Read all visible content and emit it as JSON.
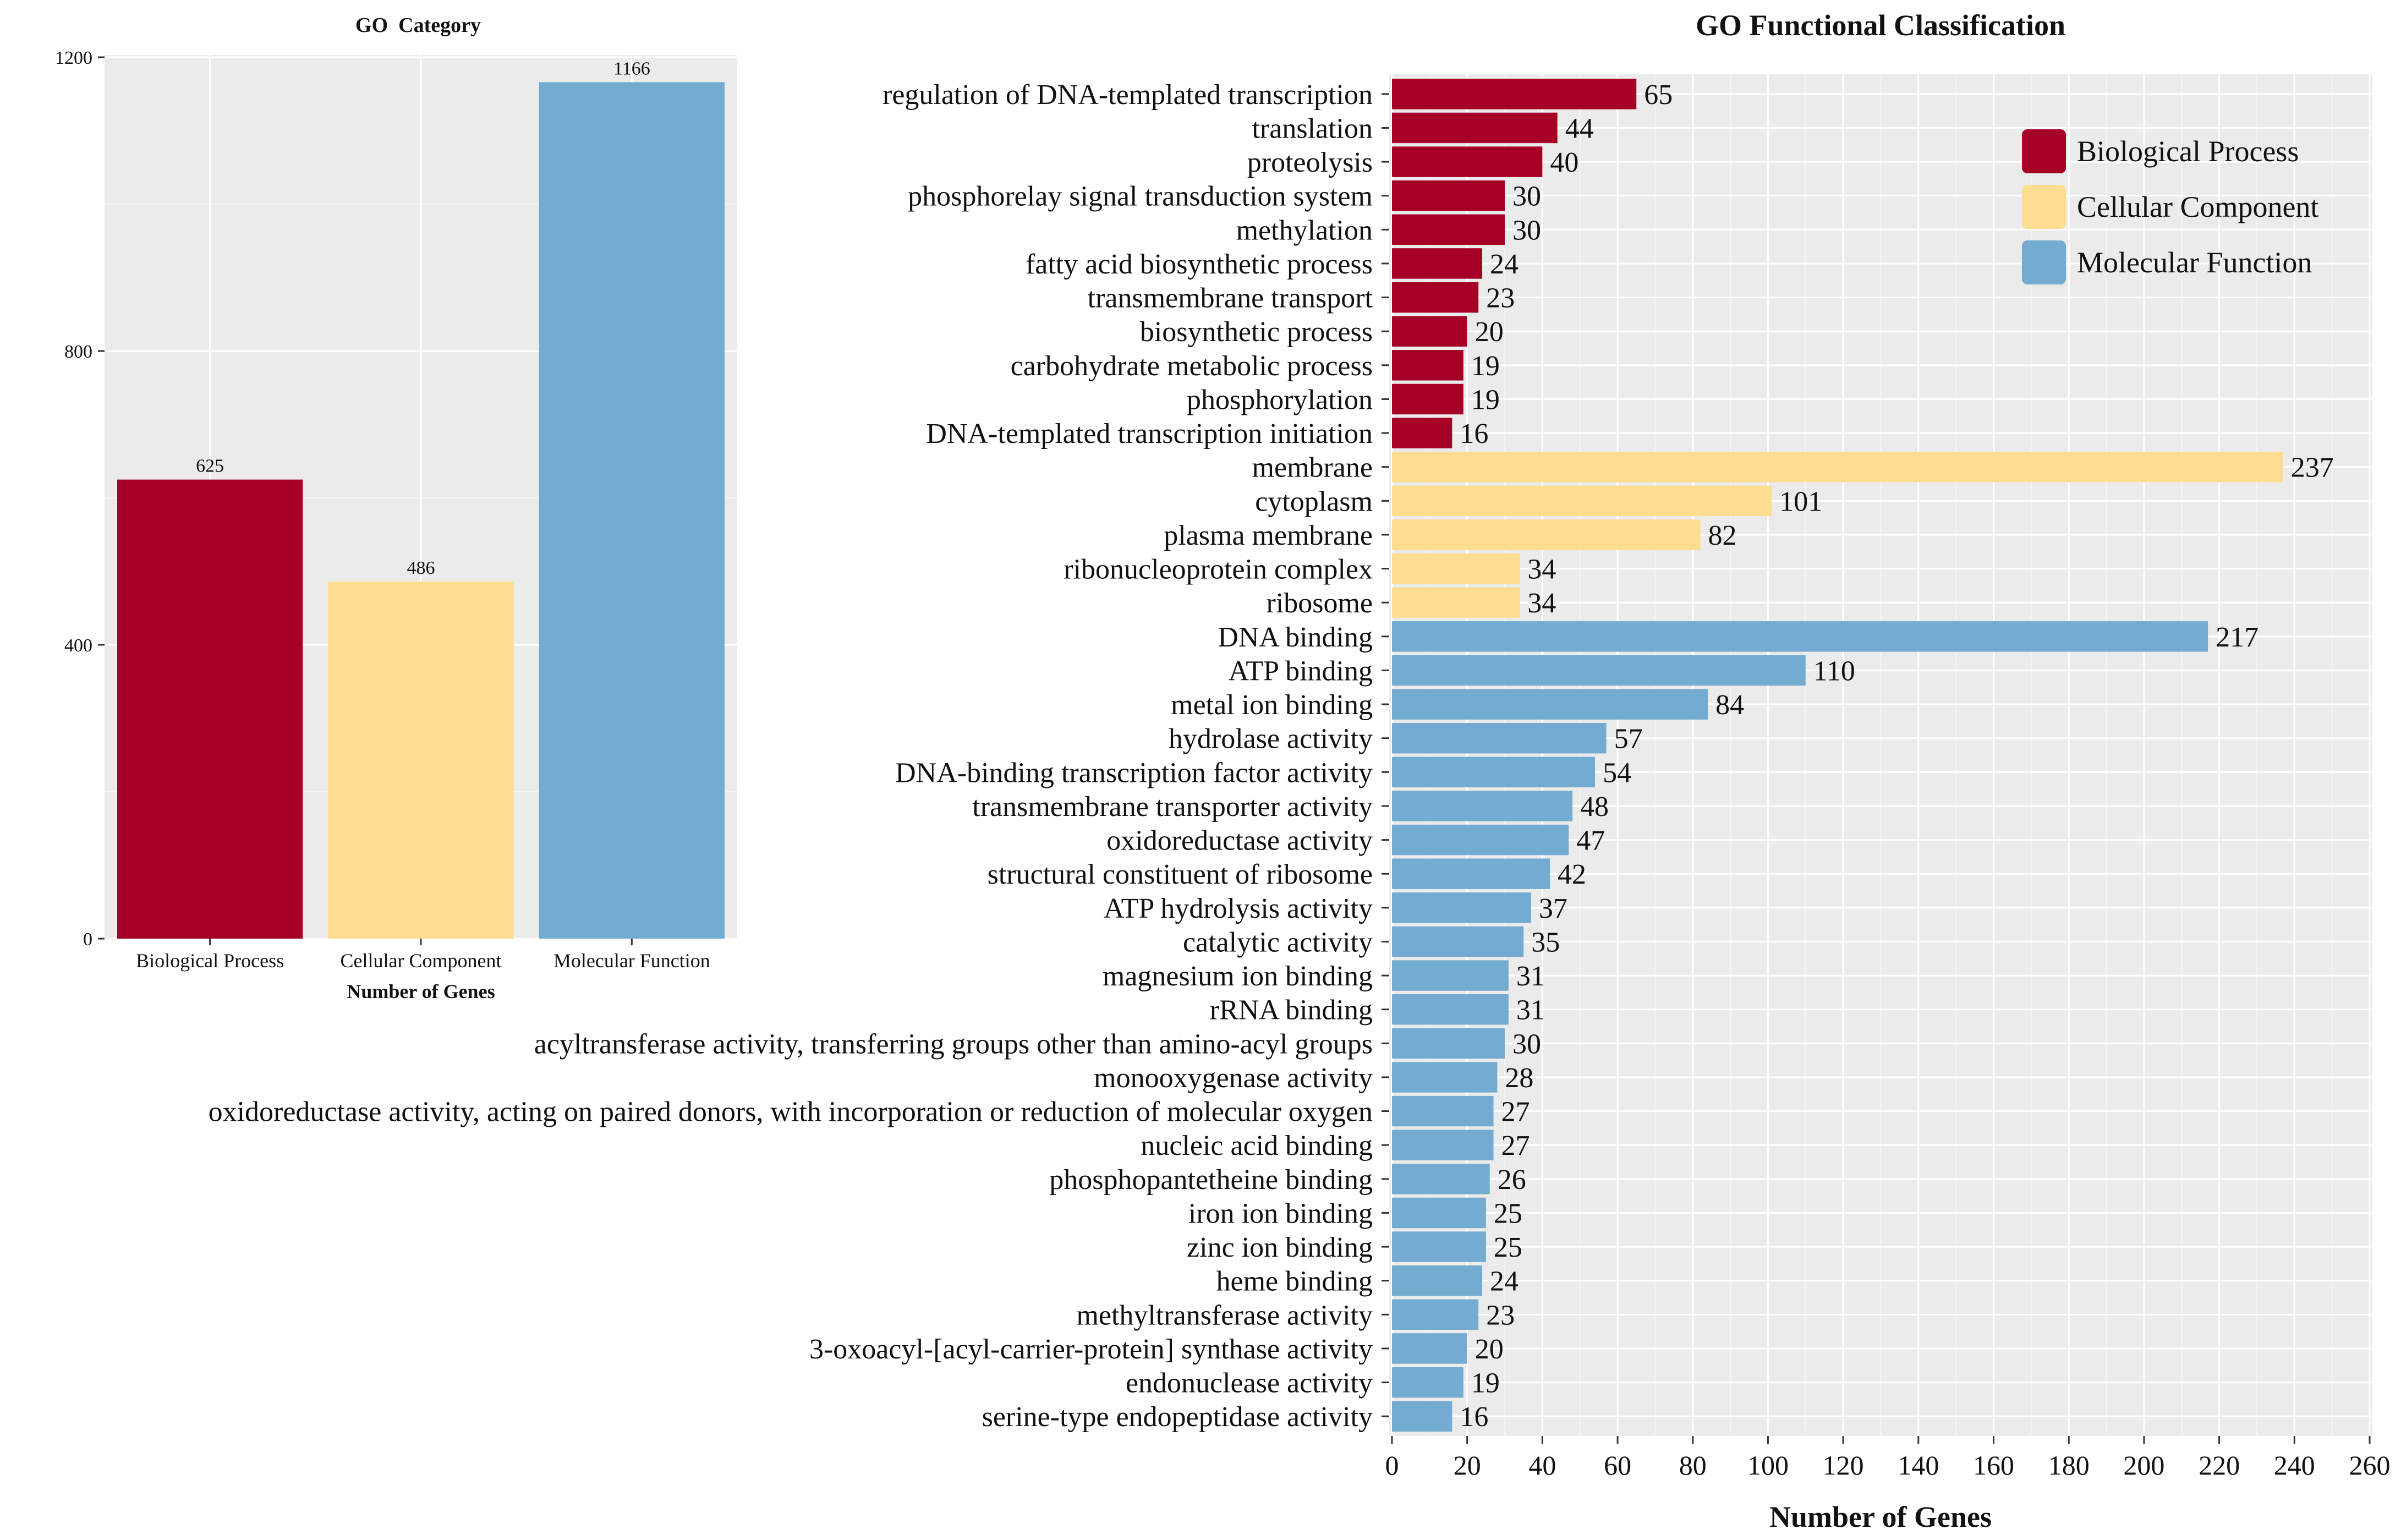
{
  "chart_data": [
    {
      "type": "bar",
      "title": "GO  Category",
      "xlabel": "Number of Genes",
      "ylabel": "",
      "ylim": [
        0,
        1200
      ],
      "yticks": [
        0,
        400,
        800,
        1200
      ],
      "grid": true,
      "legend": "none",
      "categories": [
        "Biological Process",
        "Cellular Component",
        "Molecular Function"
      ],
      "values": [
        625,
        486,
        1166
      ],
      "colors": [
        "#a50026",
        "#fedc90",
        "#74acd1"
      ]
    },
    {
      "type": "bar",
      "orientation": "horizontal",
      "title": "GO Functional Classification",
      "xlabel": "Number of Genes",
      "ylabel": "",
      "xlim": [
        0,
        260
      ],
      "xticks": [
        0,
        20,
        40,
        60,
        80,
        100,
        120,
        140,
        160,
        180,
        200,
        220,
        240,
        260
      ],
      "grid": true,
      "legend_position": "top-right",
      "legend": [
        {
          "label": "Biological Process",
          "color": "#a50026"
        },
        {
          "label": "Cellular Component",
          "color": "#fedc90"
        },
        {
          "label": "Molecular Function",
          "color": "#74acd1"
        }
      ],
      "items": [
        {
          "term": "regulation of DNA-templated transcription",
          "count": 65,
          "group": 0
        },
        {
          "term": "translation",
          "count": 44,
          "group": 0
        },
        {
          "term": "proteolysis",
          "count": 40,
          "group": 0
        },
        {
          "term": "phosphorelay signal transduction system",
          "count": 30,
          "group": 0
        },
        {
          "term": "methylation",
          "count": 30,
          "group": 0
        },
        {
          "term": "fatty acid biosynthetic process",
          "count": 24,
          "group": 0
        },
        {
          "term": "transmembrane transport",
          "count": 23,
          "group": 0
        },
        {
          "term": "biosynthetic process",
          "count": 20,
          "group": 0
        },
        {
          "term": "carbohydrate metabolic process",
          "count": 19,
          "group": 0
        },
        {
          "term": "phosphorylation",
          "count": 19,
          "group": 0
        },
        {
          "term": "DNA-templated transcription initiation",
          "count": 16,
          "group": 0
        },
        {
          "term": "membrane",
          "count": 237,
          "group": 1
        },
        {
          "term": "cytoplasm",
          "count": 101,
          "group": 1
        },
        {
          "term": "plasma membrane",
          "count": 82,
          "group": 1
        },
        {
          "term": "ribonucleoprotein complex",
          "count": 34,
          "group": 1
        },
        {
          "term": "ribosome",
          "count": 34,
          "group": 1
        },
        {
          "term": "DNA binding",
          "count": 217,
          "group": 2
        },
        {
          "term": "ATP binding",
          "count": 110,
          "group": 2
        },
        {
          "term": "metal ion binding",
          "count": 84,
          "group": 2
        },
        {
          "term": "hydrolase activity",
          "count": 57,
          "group": 2
        },
        {
          "term": "DNA-binding transcription factor activity",
          "count": 54,
          "group": 2
        },
        {
          "term": "transmembrane transporter activity",
          "count": 48,
          "group": 2
        },
        {
          "term": "oxidoreductase activity",
          "count": 47,
          "group": 2
        },
        {
          "term": "structural constituent of ribosome",
          "count": 42,
          "group": 2
        },
        {
          "term": "ATP hydrolysis activity",
          "count": 37,
          "group": 2
        },
        {
          "term": "catalytic activity",
          "count": 35,
          "group": 2
        },
        {
          "term": "magnesium ion binding",
          "count": 31,
          "group": 2
        },
        {
          "term": "rRNA binding",
          "count": 31,
          "group": 2
        },
        {
          "term": "acyltransferase activity, transferring groups other than amino-acyl groups",
          "count": 30,
          "group": 2
        },
        {
          "term": "monooxygenase activity",
          "count": 28,
          "group": 2
        },
        {
          "term": "oxidoreductase activity, acting on paired donors, with incorporation or reduction of molecular oxygen",
          "count": 27,
          "group": 2
        },
        {
          "term": "nucleic acid binding",
          "count": 27,
          "group": 2
        },
        {
          "term": "phosphopantetheine binding",
          "count": 26,
          "group": 2
        },
        {
          "term": "iron ion binding",
          "count": 25,
          "group": 2
        },
        {
          "term": "zinc ion binding",
          "count": 25,
          "group": 2
        },
        {
          "term": "heme binding",
          "count": 24,
          "group": 2
        },
        {
          "term": "methyltransferase activity",
          "count": 23,
          "group": 2
        },
        {
          "term": "3-oxoacyl-[acyl-carrier-protein] synthase activity",
          "count": 20,
          "group": 2
        },
        {
          "term": "endonuclease activity",
          "count": 19,
          "group": 2
        },
        {
          "term": "serine-type endopeptidase activity",
          "count": 16,
          "group": 2
        }
      ]
    }
  ]
}
